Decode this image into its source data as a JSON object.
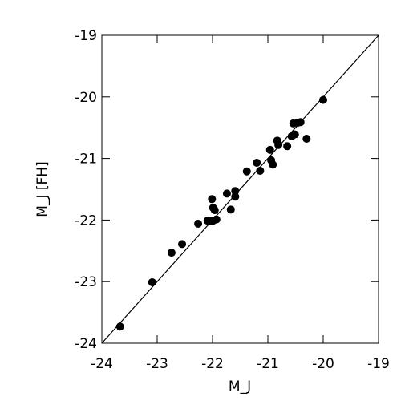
{
  "chart_data": {
    "type": "scatter",
    "x_label": "M_J",
    "y_label": "M_J [FH]",
    "xlim": [
      -24,
      -19
    ],
    "ylim": [
      -24,
      -19
    ],
    "xticks": [
      -24,
      -23,
      -22,
      -21,
      -20,
      -19
    ],
    "yticks": [
      -24,
      -23,
      -22,
      -21,
      -20,
      -19
    ],
    "color": "#000000",
    "reference_line": {
      "x": [
        -24,
        -19
      ],
      "y": [
        -24,
        -19
      ]
    },
    "x": [
      -23.67,
      -23.09,
      -22.74,
      -22.55,
      -22.26,
      -22.09,
      -22.03,
      -22.01,
      -21.99,
      -21.96,
      -21.99,
      -21.93,
      -21.74,
      -21.67,
      -21.59,
      -21.59,
      -21.38,
      -21.2,
      -21.14,
      -20.96,
      -20.94,
      -20.91,
      -20.83,
      -20.81,
      -20.65,
      -20.57,
      -20.54,
      -20.51,
      -20.46,
      -20.41,
      -20.3,
      -20.0
    ],
    "y": [
      -23.73,
      -23.01,
      -22.53,
      -22.39,
      -22.06,
      -22.01,
      -22.02,
      -21.66,
      -21.8,
      -21.84,
      -22.01,
      -21.99,
      -21.57,
      -21.83,
      -21.53,
      -21.62,
      -21.21,
      -21.07,
      -21.2,
      -20.86,
      -21.03,
      -21.1,
      -20.71,
      -20.78,
      -20.8,
      -20.64,
      -20.43,
      -20.61,
      -20.42,
      -20.41,
      -20.68,
      -20.05
    ]
  }
}
